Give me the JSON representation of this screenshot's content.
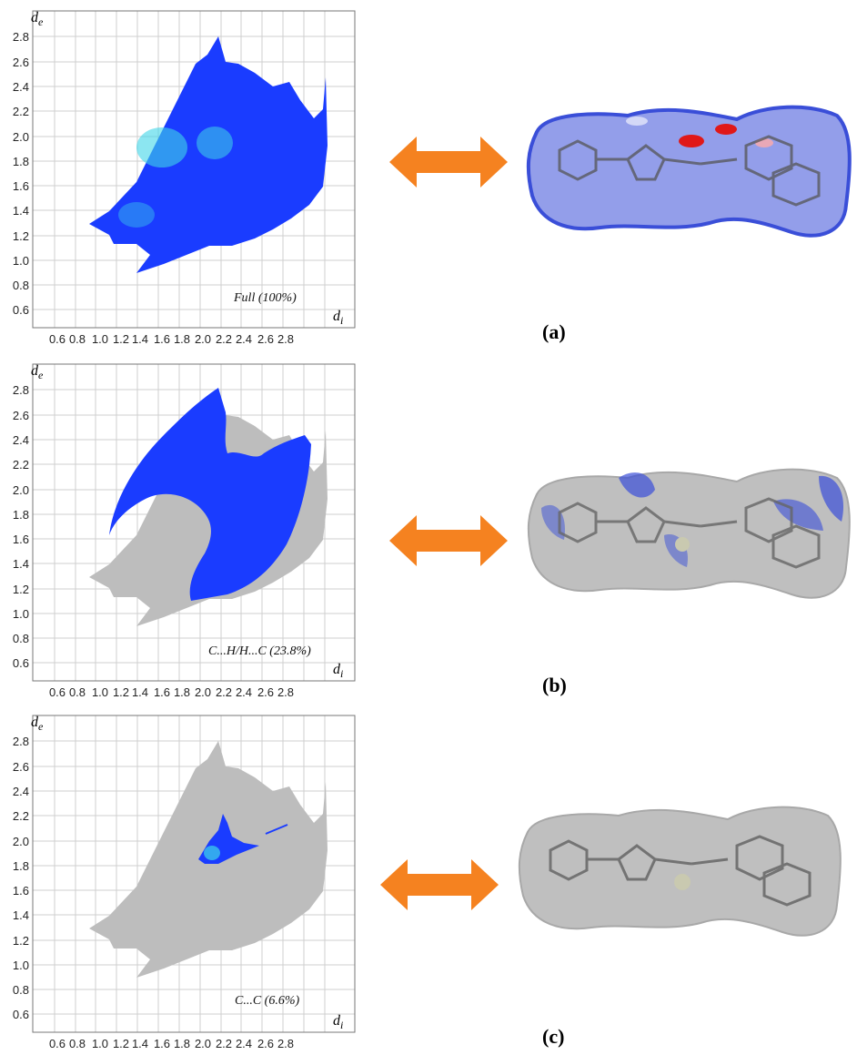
{
  "figure": {
    "axis": {
      "de_label": "d",
      "de_sub": "e",
      "di_label": "d",
      "di_sub": "i",
      "y_ticks": [
        "2.8",
        "2.6",
        "2.4",
        "2.2",
        "2.0",
        "1.8",
        "1.6",
        "1.4",
        "1.2",
        "1.0",
        "0.8",
        "0.6"
      ],
      "x_ticks": [
        "0.6",
        "0.8",
        "1.0",
        "1.2",
        "1.4",
        "1.6",
        "1.8",
        "2.0",
        "2.2",
        "2.4",
        "2.6",
        "2.8"
      ]
    },
    "panels": [
      {
        "id": "a",
        "panel_label": "(a)",
        "plot_label": "Full (100%)"
      },
      {
        "id": "b",
        "panel_label": "(b)",
        "plot_label": "C...H/H...C (23.8%)"
      },
      {
        "id": "c",
        "panel_label": "(c)",
        "plot_label": "C...C (6.6%)"
      }
    ],
    "colors": {
      "fingerprint_blue": "#1a3cff",
      "fingerprint_cyan": "#3fd6e8",
      "fingerprint_grey": "#bdbdbd",
      "arrow": "#f58220",
      "surface_blue": "#3a4fd8",
      "surface_red": "#e01818",
      "surface_grey": "#bfbfbf"
    }
  }
}
